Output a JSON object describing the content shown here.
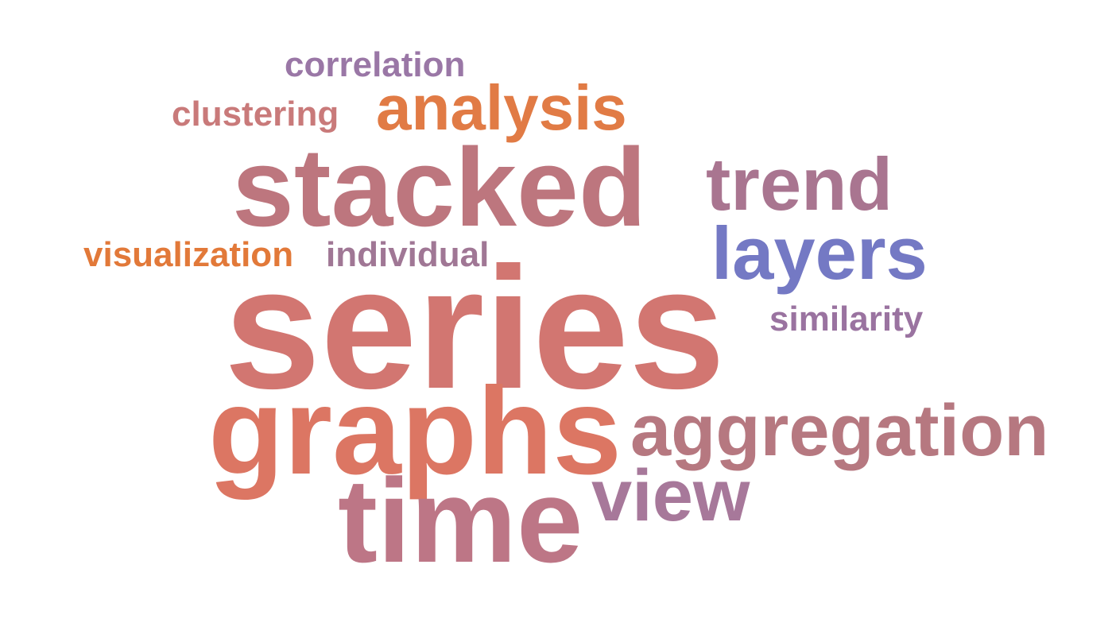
{
  "words": [
    {
      "id": "correlation",
      "text": "correlation",
      "color": "#9a77a6"
    },
    {
      "id": "analysis",
      "text": "analysis",
      "color": "#e17b45"
    },
    {
      "id": "clustering",
      "text": "clustering",
      "color": "#c97a7a"
    },
    {
      "id": "stacked",
      "text": "stacked",
      "color": "#bd767e"
    },
    {
      "id": "trend",
      "text": "trend",
      "color": "#a97590"
    },
    {
      "id": "layers",
      "text": "layers",
      "color": "#7479c4"
    },
    {
      "id": "visualization",
      "text": "visualization",
      "color": "#e27939"
    },
    {
      "id": "individual",
      "text": "individual",
      "color": "#a07795"
    },
    {
      "id": "series",
      "text": "series",
      "color": "#d27671"
    },
    {
      "id": "similarity",
      "text": "similarity",
      "color": "#9a73a0"
    },
    {
      "id": "graphs",
      "text": "graphs",
      "color": "#dc7663"
    },
    {
      "id": "aggregation",
      "text": "aggregation",
      "color": "#b67880"
    },
    {
      "id": "view",
      "text": "view",
      "color": "#a7789a"
    },
    {
      "id": "time",
      "text": "time",
      "color": "#bd7686"
    }
  ]
}
